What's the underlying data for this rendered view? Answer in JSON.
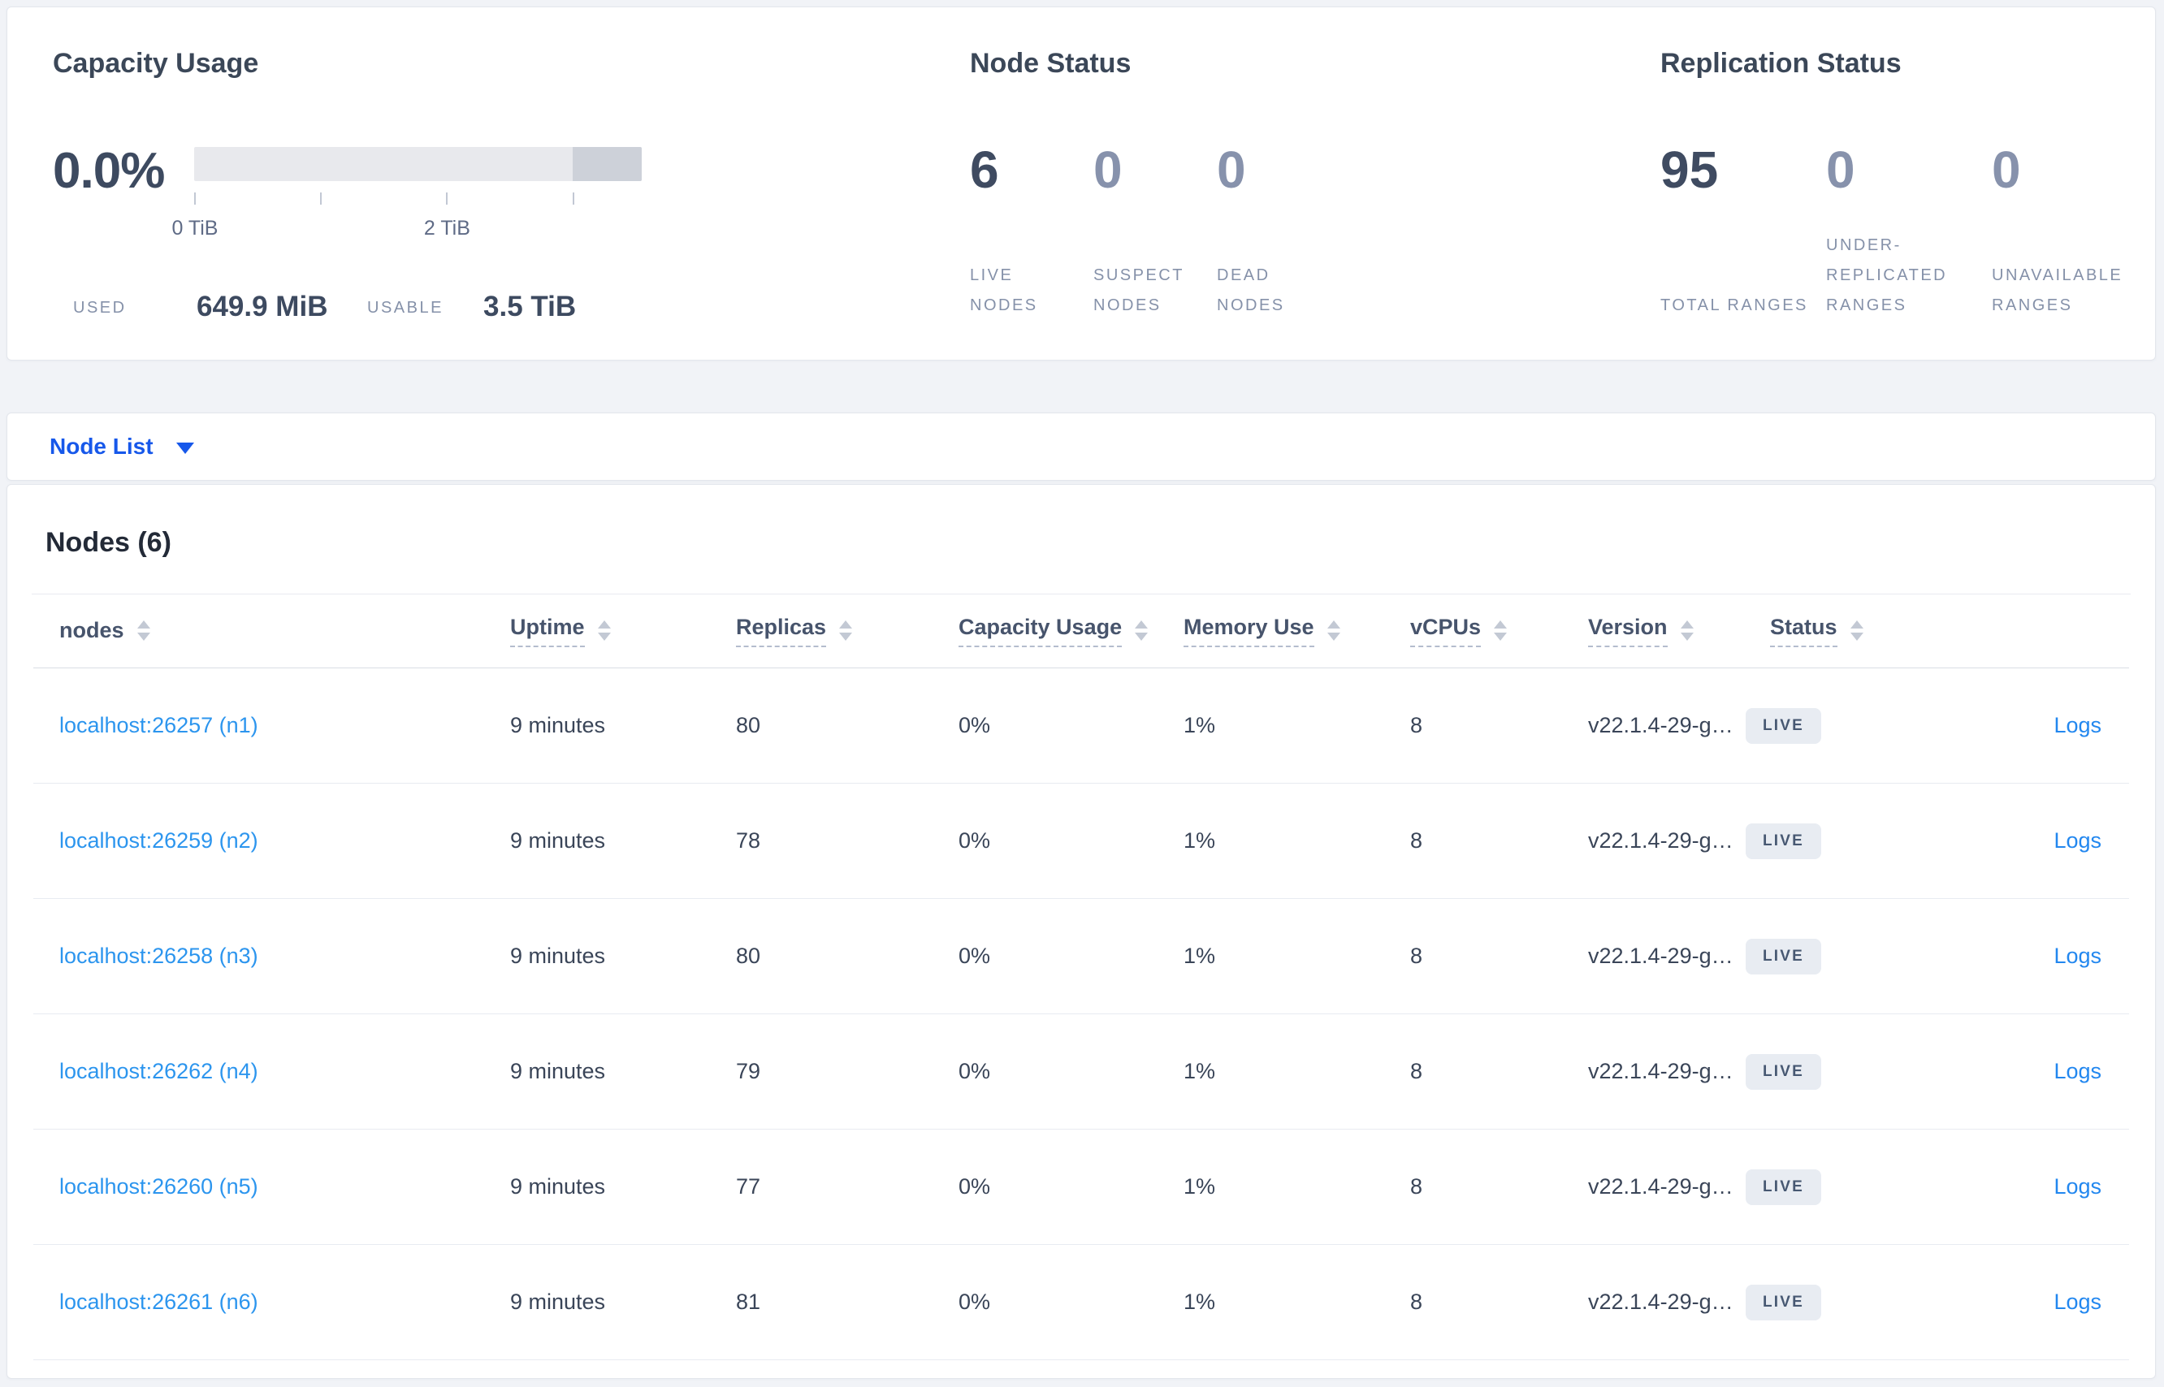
{
  "colors": {
    "page_bg": "#f1f3f7",
    "accent_blue": "#1758ea",
    "node_link_blue": "#2c95ee",
    "logs_link_blue": "#2287ef",
    "badge_bg": "#e8ecf2",
    "badge_text": "#475872",
    "bar_track": "#e8e9ed",
    "bar_highlight": "#cdd1d9",
    "heading_text": "#3b4758",
    "muted_stat": "#8792ac"
  },
  "summary": {
    "capacity": {
      "title": "Capacity Usage",
      "percent": "0.0%",
      "used_label": "USED",
      "used_value": "649.9 MiB",
      "usable_label": "USABLE",
      "usable_value": "3.5 TiB",
      "bar": {
        "total_tib": 3.55,
        "highlight_from_tib": 3.0,
        "tick_interval_tib": 1,
        "tick_labels": {
          "0": "0 TiB",
          "2": "2 TiB"
        }
      }
    },
    "node_status": {
      "title": "Node Status",
      "stats": [
        {
          "value": "6",
          "label": "LIVE NODES",
          "muted": false
        },
        {
          "value": "0",
          "label": "SUSPECT NODES",
          "muted": true
        },
        {
          "value": "0",
          "label": "DEAD NODES",
          "muted": true
        }
      ]
    },
    "replication_status": {
      "title": "Replication Status",
      "stats": [
        {
          "value": "95",
          "label": "TOTAL RANGES",
          "muted": false
        },
        {
          "value": "0",
          "label": "UNDER-REPLICATED RANGES",
          "muted": true
        },
        {
          "value": "0",
          "label": "UNAVAILABLE RANGES",
          "muted": true
        }
      ]
    }
  },
  "node_list_selector": {
    "label": "Node List"
  },
  "nodes_table": {
    "title": "Nodes (6)",
    "columns": [
      {
        "key": "nodes",
        "label": "nodes",
        "sortable": true,
        "tooltip": false
      },
      {
        "key": "uptime",
        "label": "Uptime",
        "sortable": true,
        "tooltip": true
      },
      {
        "key": "replicas",
        "label": "Replicas",
        "sortable": true,
        "tooltip": true
      },
      {
        "key": "capacity",
        "label": "Capacity Usage",
        "sortable": true,
        "tooltip": true
      },
      {
        "key": "memory",
        "label": "Memory Use",
        "sortable": true,
        "tooltip": true
      },
      {
        "key": "vcpus",
        "label": "vCPUs",
        "sortable": true,
        "tooltip": true
      },
      {
        "key": "version",
        "label": "Version",
        "sortable": true,
        "tooltip": true
      },
      {
        "key": "status",
        "label": "Status",
        "sortable": true,
        "tooltip": true
      },
      {
        "key": "logs",
        "label": "",
        "sortable": false,
        "tooltip": false
      }
    ],
    "rows": [
      {
        "nodes": "localhost:26257 (n1)",
        "uptime": "9 minutes",
        "replicas": "80",
        "capacity": "0%",
        "memory": "1%",
        "vcpus": "8",
        "version": "v22.1.4-29-g…",
        "status": "LIVE",
        "logs": "Logs"
      },
      {
        "nodes": "localhost:26259 (n2)",
        "uptime": "9 minutes",
        "replicas": "78",
        "capacity": "0%",
        "memory": "1%",
        "vcpus": "8",
        "version": "v22.1.4-29-g…",
        "status": "LIVE",
        "logs": "Logs"
      },
      {
        "nodes": "localhost:26258 (n3)",
        "uptime": "9 minutes",
        "replicas": "80",
        "capacity": "0%",
        "memory": "1%",
        "vcpus": "8",
        "version": "v22.1.4-29-g…",
        "status": "LIVE",
        "logs": "Logs"
      },
      {
        "nodes": "localhost:26262 (n4)",
        "uptime": "9 minutes",
        "replicas": "79",
        "capacity": "0%",
        "memory": "1%",
        "vcpus": "8",
        "version": "v22.1.4-29-g…",
        "status": "LIVE",
        "logs": "Logs"
      },
      {
        "nodes": "localhost:26260 (n5)",
        "uptime": "9 minutes",
        "replicas": "77",
        "capacity": "0%",
        "memory": "1%",
        "vcpus": "8",
        "version": "v22.1.4-29-g…",
        "status": "LIVE",
        "logs": "Logs"
      },
      {
        "nodes": "localhost:26261 (n6)",
        "uptime": "9 minutes",
        "replicas": "81",
        "capacity": "0%",
        "memory": "1%",
        "vcpus": "8",
        "version": "v22.1.4-29-g…",
        "status": "LIVE",
        "logs": "Logs"
      }
    ]
  }
}
